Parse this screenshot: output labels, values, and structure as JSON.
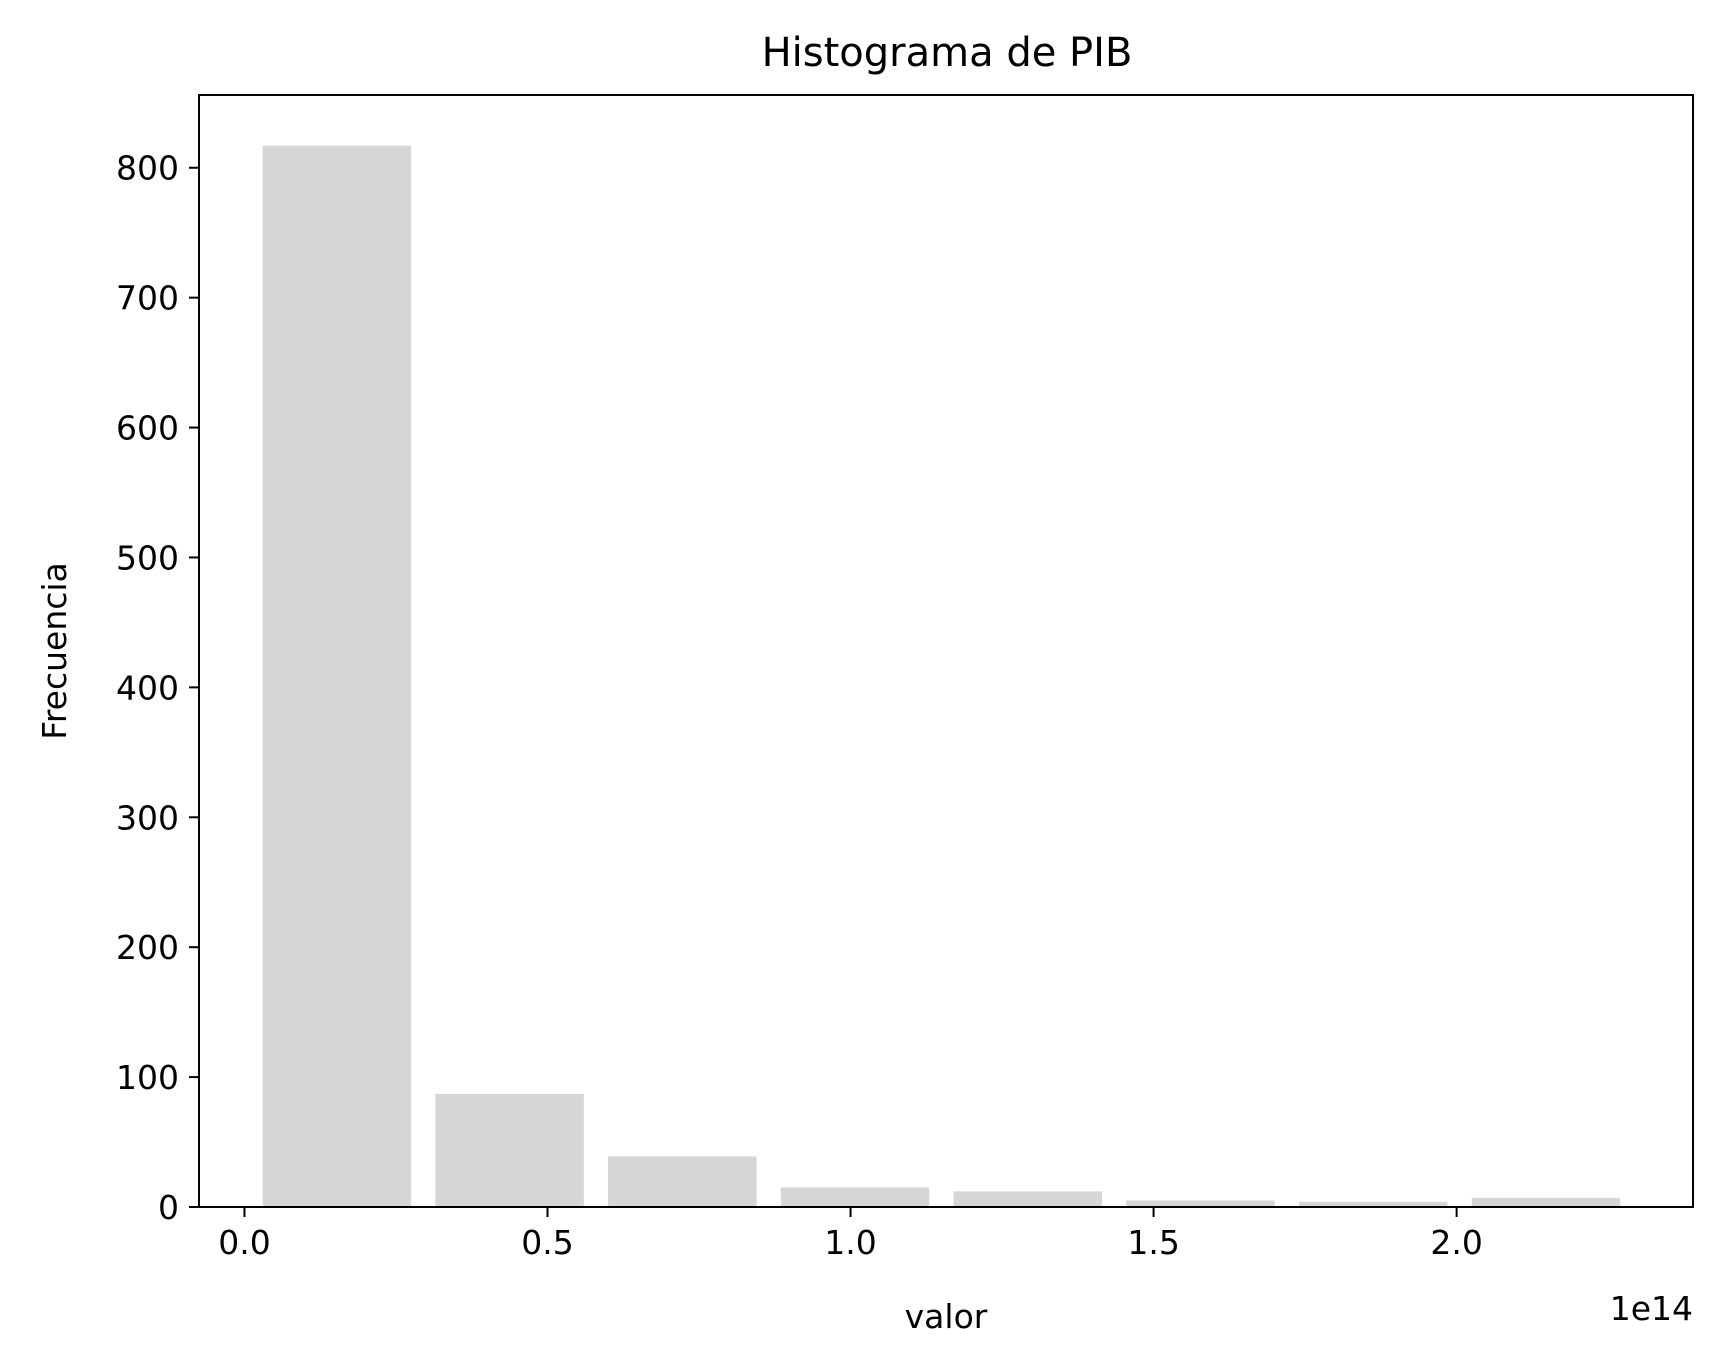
{
  "chart_data": {
    "type": "bar",
    "title": "Histograma de PIB",
    "xlabel": "valor",
    "ylabel": "Frecuencia",
    "x_offset_label": "1e14",
    "bar_color": "#d6d6d6",
    "xlim": [
      -0.075,
      2.39
    ],
    "ylim": [
      0,
      856
    ],
    "x_ticks": [
      {
        "value": 0.0,
        "label": "0.0"
      },
      {
        "value": 0.5,
        "label": "0.5"
      },
      {
        "value": 1.0,
        "label": "1.0"
      },
      {
        "value": 1.5,
        "label": "1.5"
      },
      {
        "value": 2.0,
        "label": "2.0"
      }
    ],
    "y_ticks": [
      {
        "value": 0,
        "label": "0"
      },
      {
        "value": 100,
        "label": "100"
      },
      {
        "value": 200,
        "label": "200"
      },
      {
        "value": 300,
        "label": "300"
      },
      {
        "value": 400,
        "label": "400"
      },
      {
        "value": 500,
        "label": "500"
      },
      {
        "value": 600,
        "label": "600"
      },
      {
        "value": 700,
        "label": "700"
      },
      {
        "value": 800,
        "label": "800"
      }
    ],
    "bins": [
      {
        "x0": 0.03,
        "x1": 0.275,
        "count": 817
      },
      {
        "x0": 0.315,
        "x1": 0.56,
        "count": 87
      },
      {
        "x0": 0.6,
        "x1": 0.845,
        "count": 39
      },
      {
        "x0": 0.885,
        "x1": 1.13,
        "count": 15
      },
      {
        "x0": 1.17,
        "x1": 1.415,
        "count": 12
      },
      {
        "x0": 1.455,
        "x1": 1.7,
        "count": 5
      },
      {
        "x0": 1.74,
        "x1": 1.985,
        "count": 4
      },
      {
        "x0": 2.025,
        "x1": 2.27,
        "count": 7
      }
    ]
  }
}
